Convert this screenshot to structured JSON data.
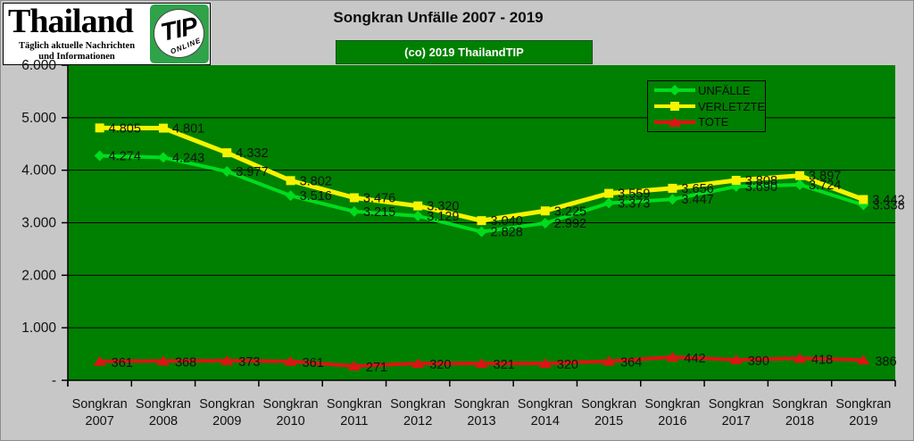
{
  "logo": {
    "title": "Thailand",
    "subtitle_line1": "Täglich aktuelle Nachrichten",
    "subtitle_line2": "und Informationen",
    "badge_text": "TIP",
    "badge_subtext": "ONLINE"
  },
  "header": {
    "title": "Songkran Unfälle 2007 - 2019",
    "copyright": "(co) 2019 ThailandTIP"
  },
  "colors": {
    "page_bg": "#c7c7c7",
    "plot_bg": "#008000",
    "grid": "#000000",
    "label_text": "#111111",
    "unfaelle": "#00dc1e",
    "verletzte": "#f7f400",
    "tote": "#dc1414"
  },
  "chart_data": {
    "type": "line",
    "title": "Songkran Unfälle 2007 - 2019",
    "categories": [
      "Songkran 2007",
      "Songkran 2008",
      "Songkran 2009",
      "Songkran 2010",
      "Songkran 2011",
      "Songkran 2012",
      "Songkran 2013",
      "Songkran 2014",
      "Songkran 2015",
      "Songkran 2016",
      "Songkran 2017",
      "Songkran 2018",
      "Songkran 2019"
    ],
    "series": [
      {
        "name": "UNFÄLLE",
        "color": "#00dc1e",
        "marker": "diamond",
        "values": [
          4274,
          4243,
          3977,
          3516,
          3215,
          3129,
          2828,
          2992,
          3373,
          3447,
          3690,
          3724,
          3338
        ]
      },
      {
        "name": "VERLETZTE",
        "color": "#f7f400",
        "marker": "square",
        "values": [
          4805,
          4801,
          4332,
          3802,
          3476,
          3320,
          3040,
          3225,
          3559,
          3656,
          3808,
          3897,
          3442
        ]
      },
      {
        "name": "TOTE",
        "color": "#dc1414",
        "marker": "triangle",
        "values": [
          361,
          368,
          373,
          361,
          271,
          320,
          321,
          320,
          364,
          442,
          390,
          418,
          386
        ]
      }
    ],
    "ylim": [
      0,
      6000
    ],
    "y_ticks": [
      0,
      1000,
      2000,
      3000,
      4000,
      5000,
      6000
    ],
    "y_tick_labels": [
      "-",
      "1.000",
      "2.000",
      "3.000",
      "4.000",
      "5.000",
      "6.000"
    ],
    "grid": true,
    "data_labels": true,
    "legend_position": "top-right"
  }
}
